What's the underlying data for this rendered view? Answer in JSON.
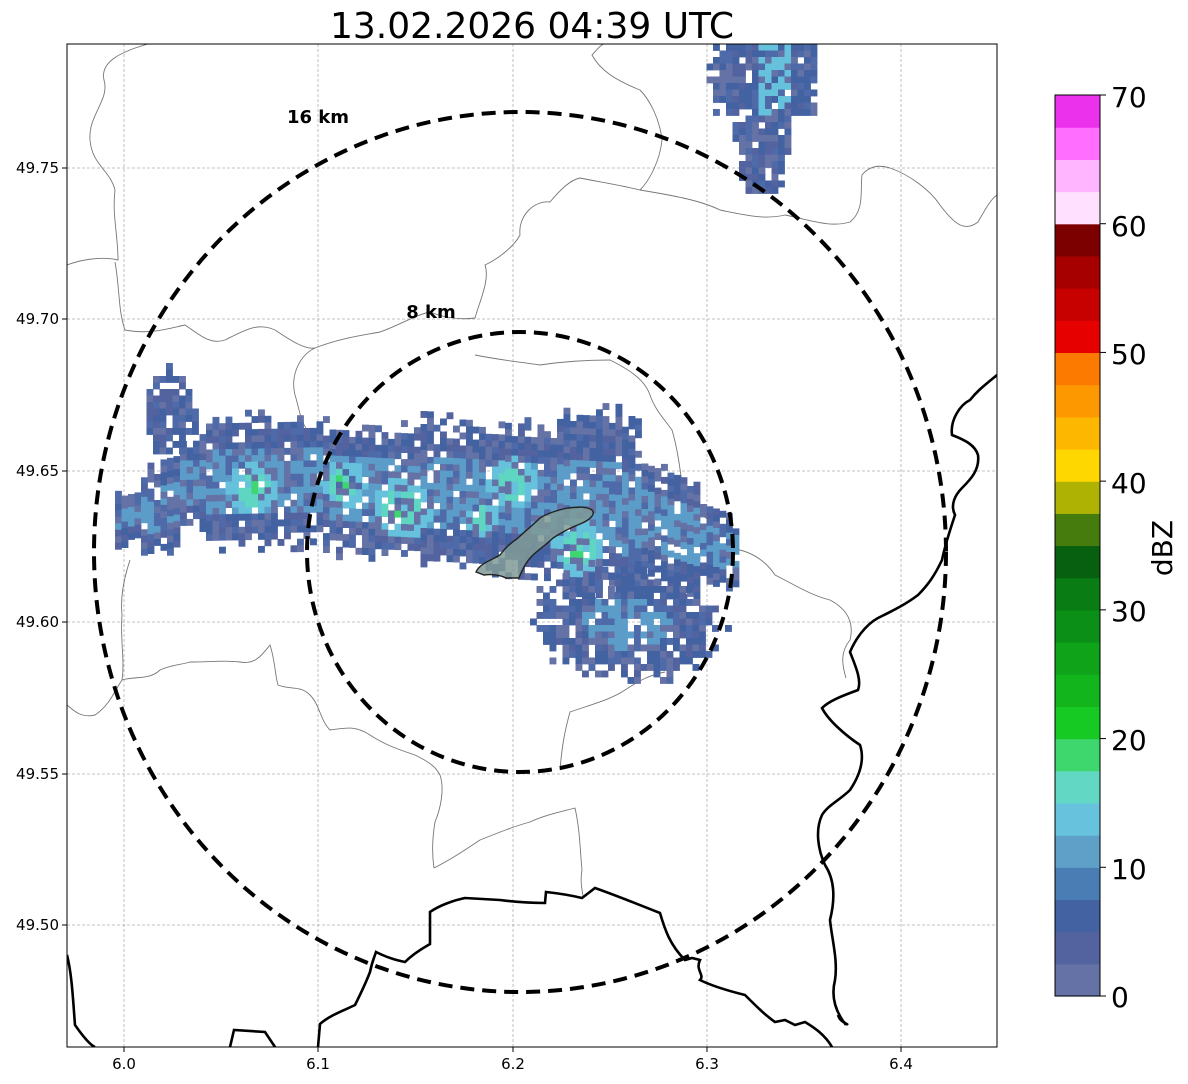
{
  "title": "13.02.2026 04:39 UTC",
  "map": {
    "lon_range": [
      5.97,
      6.45
    ],
    "lat_range": [
      49.46,
      49.79
    ],
    "x_ticks": [
      "6.0",
      "6.1",
      "6.2",
      "6.3",
      "6.4"
    ],
    "y_ticks": [
      "49.50",
      "49.55",
      "49.60",
      "49.65",
      "49.70",
      "49.75"
    ],
    "grid": true,
    "center": {
      "lon": 6.204,
      "lat": 49.623
    },
    "rings": [
      {
        "label": "8 km",
        "radius_km": 8
      },
      {
        "label": "16 km",
        "radius_km": 16
      }
    ],
    "precip_color": "#4f6aa8",
    "precip_light": "#5b9cc8",
    "precip_cyan": "#66c2dc",
    "precip_teal": "#5ed6c2",
    "precip_green": "#3dd670",
    "highlight_fill": "#7f9a96"
  },
  "colorbar": {
    "label": "dBZ",
    "ticks": [
      "0",
      "10",
      "20",
      "30",
      "40",
      "50",
      "60",
      "70"
    ],
    "range": [
      0,
      70
    ],
    "colors": [
      "#6572a6",
      "#5363a0",
      "#4262a2",
      "#4a7db4",
      "#5ea0c8",
      "#67c2de",
      "#62d8c4",
      "#3ed76e",
      "#16c923",
      "#12b61c",
      "#0fa31a",
      "#0c8f17",
      "#0a7c14",
      "#075f10",
      "#467b0e",
      "#aeb203",
      "#fed600",
      "#fdb700",
      "#fd9800",
      "#fd7a00",
      "#e70000",
      "#c70000",
      "#a70000",
      "#7d0000",
      "#ffe1ff",
      "#ffb5ff",
      "#ff6eff",
      "#ec31ec"
    ]
  }
}
